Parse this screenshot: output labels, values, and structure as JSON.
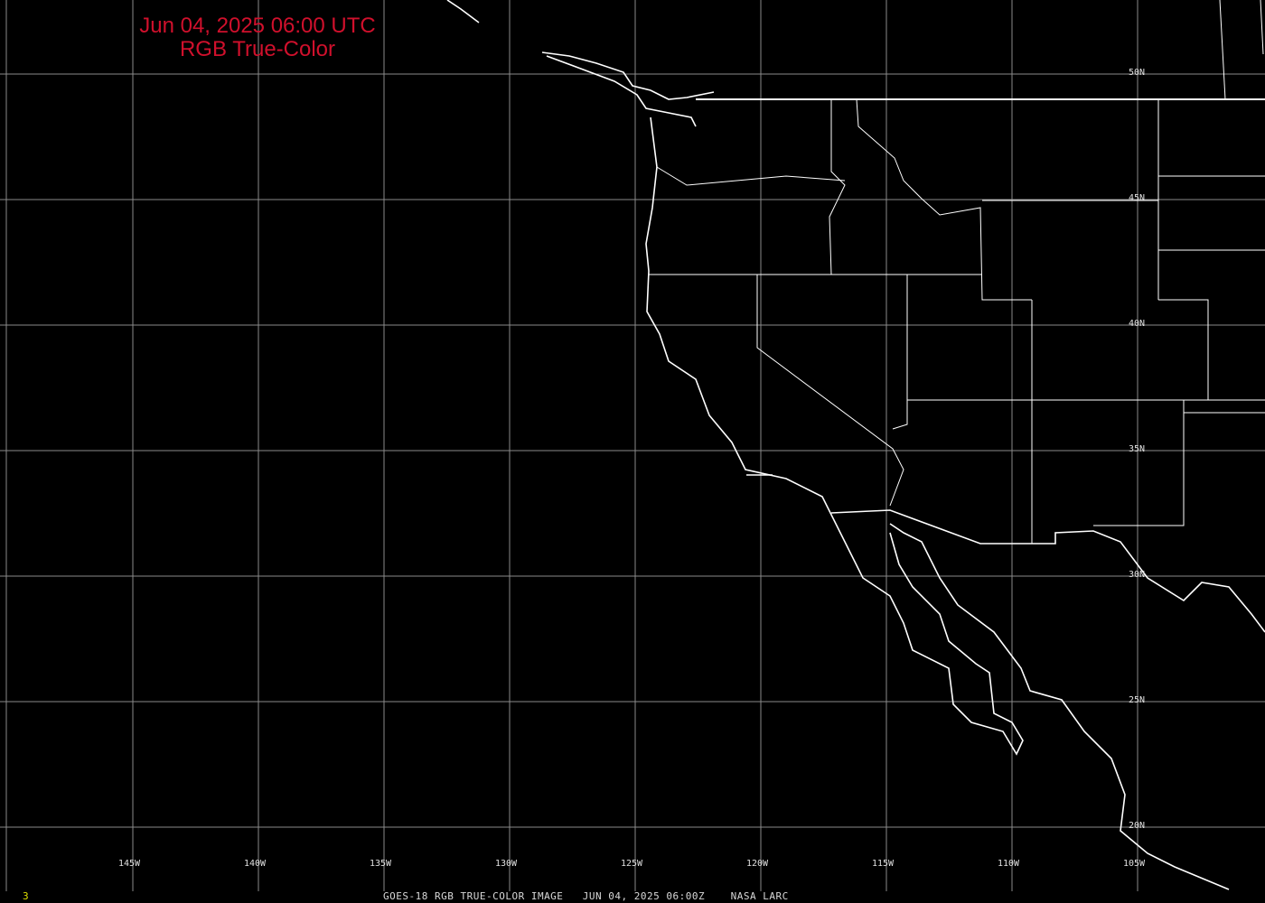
{
  "title": {
    "line1": "Jun 04, 2025 06:00 UTC",
    "line2": "RGB True-Color",
    "color": "#d0102c"
  },
  "grid": {
    "longitudes": [
      "145W",
      "140W",
      "135W",
      "130W",
      "125W",
      "120W",
      "115W",
      "110W",
      "105W"
    ],
    "latitudes": [
      "50N",
      "45N",
      "40N",
      "35N",
      "30N",
      "25N",
      "20N"
    ],
    "line_color": "#8a8a8a"
  },
  "footer": {
    "frame_number": "3",
    "caption": "GOES-18 RGB TRUE-COLOR IMAGE   JUN 04, 2025 06:00Z    NASA LARC",
    "frame_color": "#e0e000"
  },
  "map": {
    "coastline_color": "#ffffff",
    "background": "#000000"
  }
}
